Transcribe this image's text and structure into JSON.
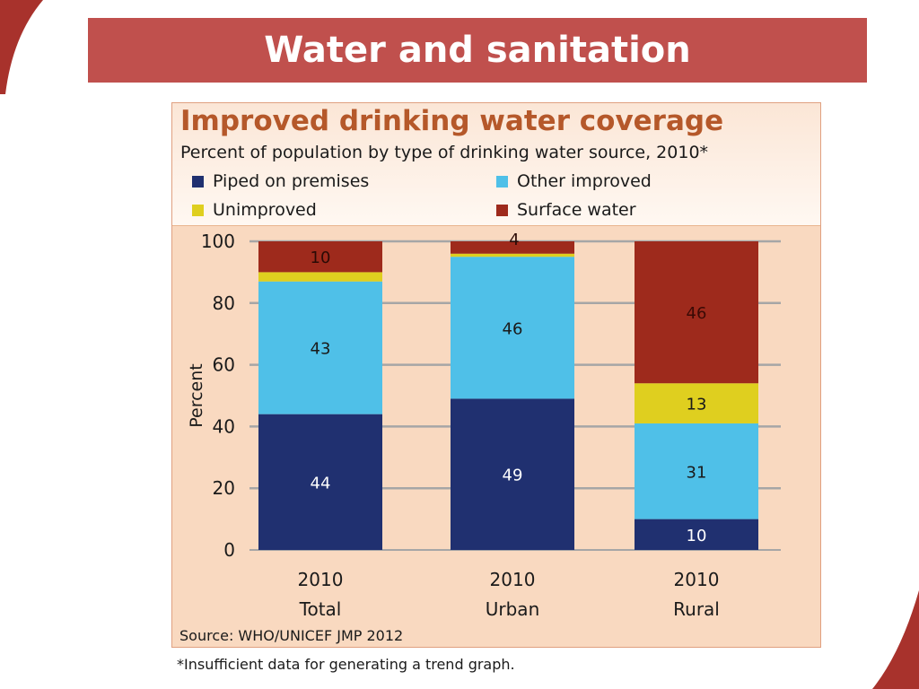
{
  "slide": {
    "title": "Water and sanitation",
    "source": "Source:  WHO/UNICEF JMP 2012",
    "footnote": "*Insufficient data for generating a trend graph."
  },
  "colors": {
    "title_bar": "#c0504d",
    "panel": "#f9d9c0",
    "chart_title": "#b5582a",
    "piped": "#203070",
    "other_improved": "#4fc0e8",
    "unimproved": "#dfcf1f",
    "surface": "#9e2a1c"
  },
  "chart_data": {
    "type": "bar",
    "stacked": true,
    "title": "Improved drinking water coverage",
    "subtitle": "Percent of population by type of drinking water source, 2010*",
    "ylabel": "Percent",
    "ylim": [
      0,
      100
    ],
    "yticks": [
      0,
      20,
      40,
      60,
      80,
      100
    ],
    "grid": true,
    "legend_position": "top",
    "categories": [
      [
        "2010",
        "Total"
      ],
      [
        "2010",
        "Urban"
      ],
      [
        "2010",
        "Rural"
      ]
    ],
    "series": [
      {
        "name": "Piped on premises",
        "color": "#203070",
        "values": [
          44,
          49,
          10
        ]
      },
      {
        "name": "Other improved",
        "color": "#4fc0e8",
        "values": [
          43,
          46,
          31
        ]
      },
      {
        "name": "Unimproved",
        "color": "#dfcf1f",
        "values": [
          3,
          1,
          13
        ]
      },
      {
        "name": "Surface water",
        "color": "#9e2a1c",
        "values": [
          10,
          4,
          46
        ]
      }
    ]
  }
}
